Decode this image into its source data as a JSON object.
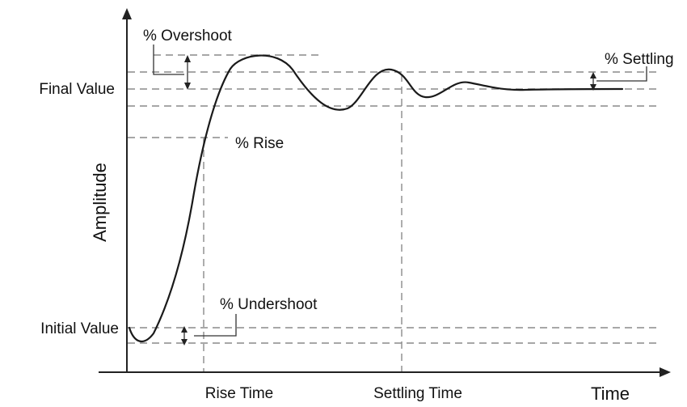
{
  "diagram": {
    "y_axis_title": "Amplitude",
    "x_axis_title": "Time",
    "left_labels": {
      "final_value": "Final Value",
      "initial_value": "Initial Value"
    },
    "bottom_labels": {
      "rise_time": "Rise Time",
      "settling_time": "Settling Time"
    },
    "annotations": {
      "overshoot": "% Overshoot",
      "rise": "% Rise",
      "settling": "% Settling",
      "undershoot": "% Undershoot"
    }
  },
  "colors": {
    "curve": "#1a1a1a",
    "guide_lines": "#8a8a8a",
    "axes": "#222222"
  }
}
